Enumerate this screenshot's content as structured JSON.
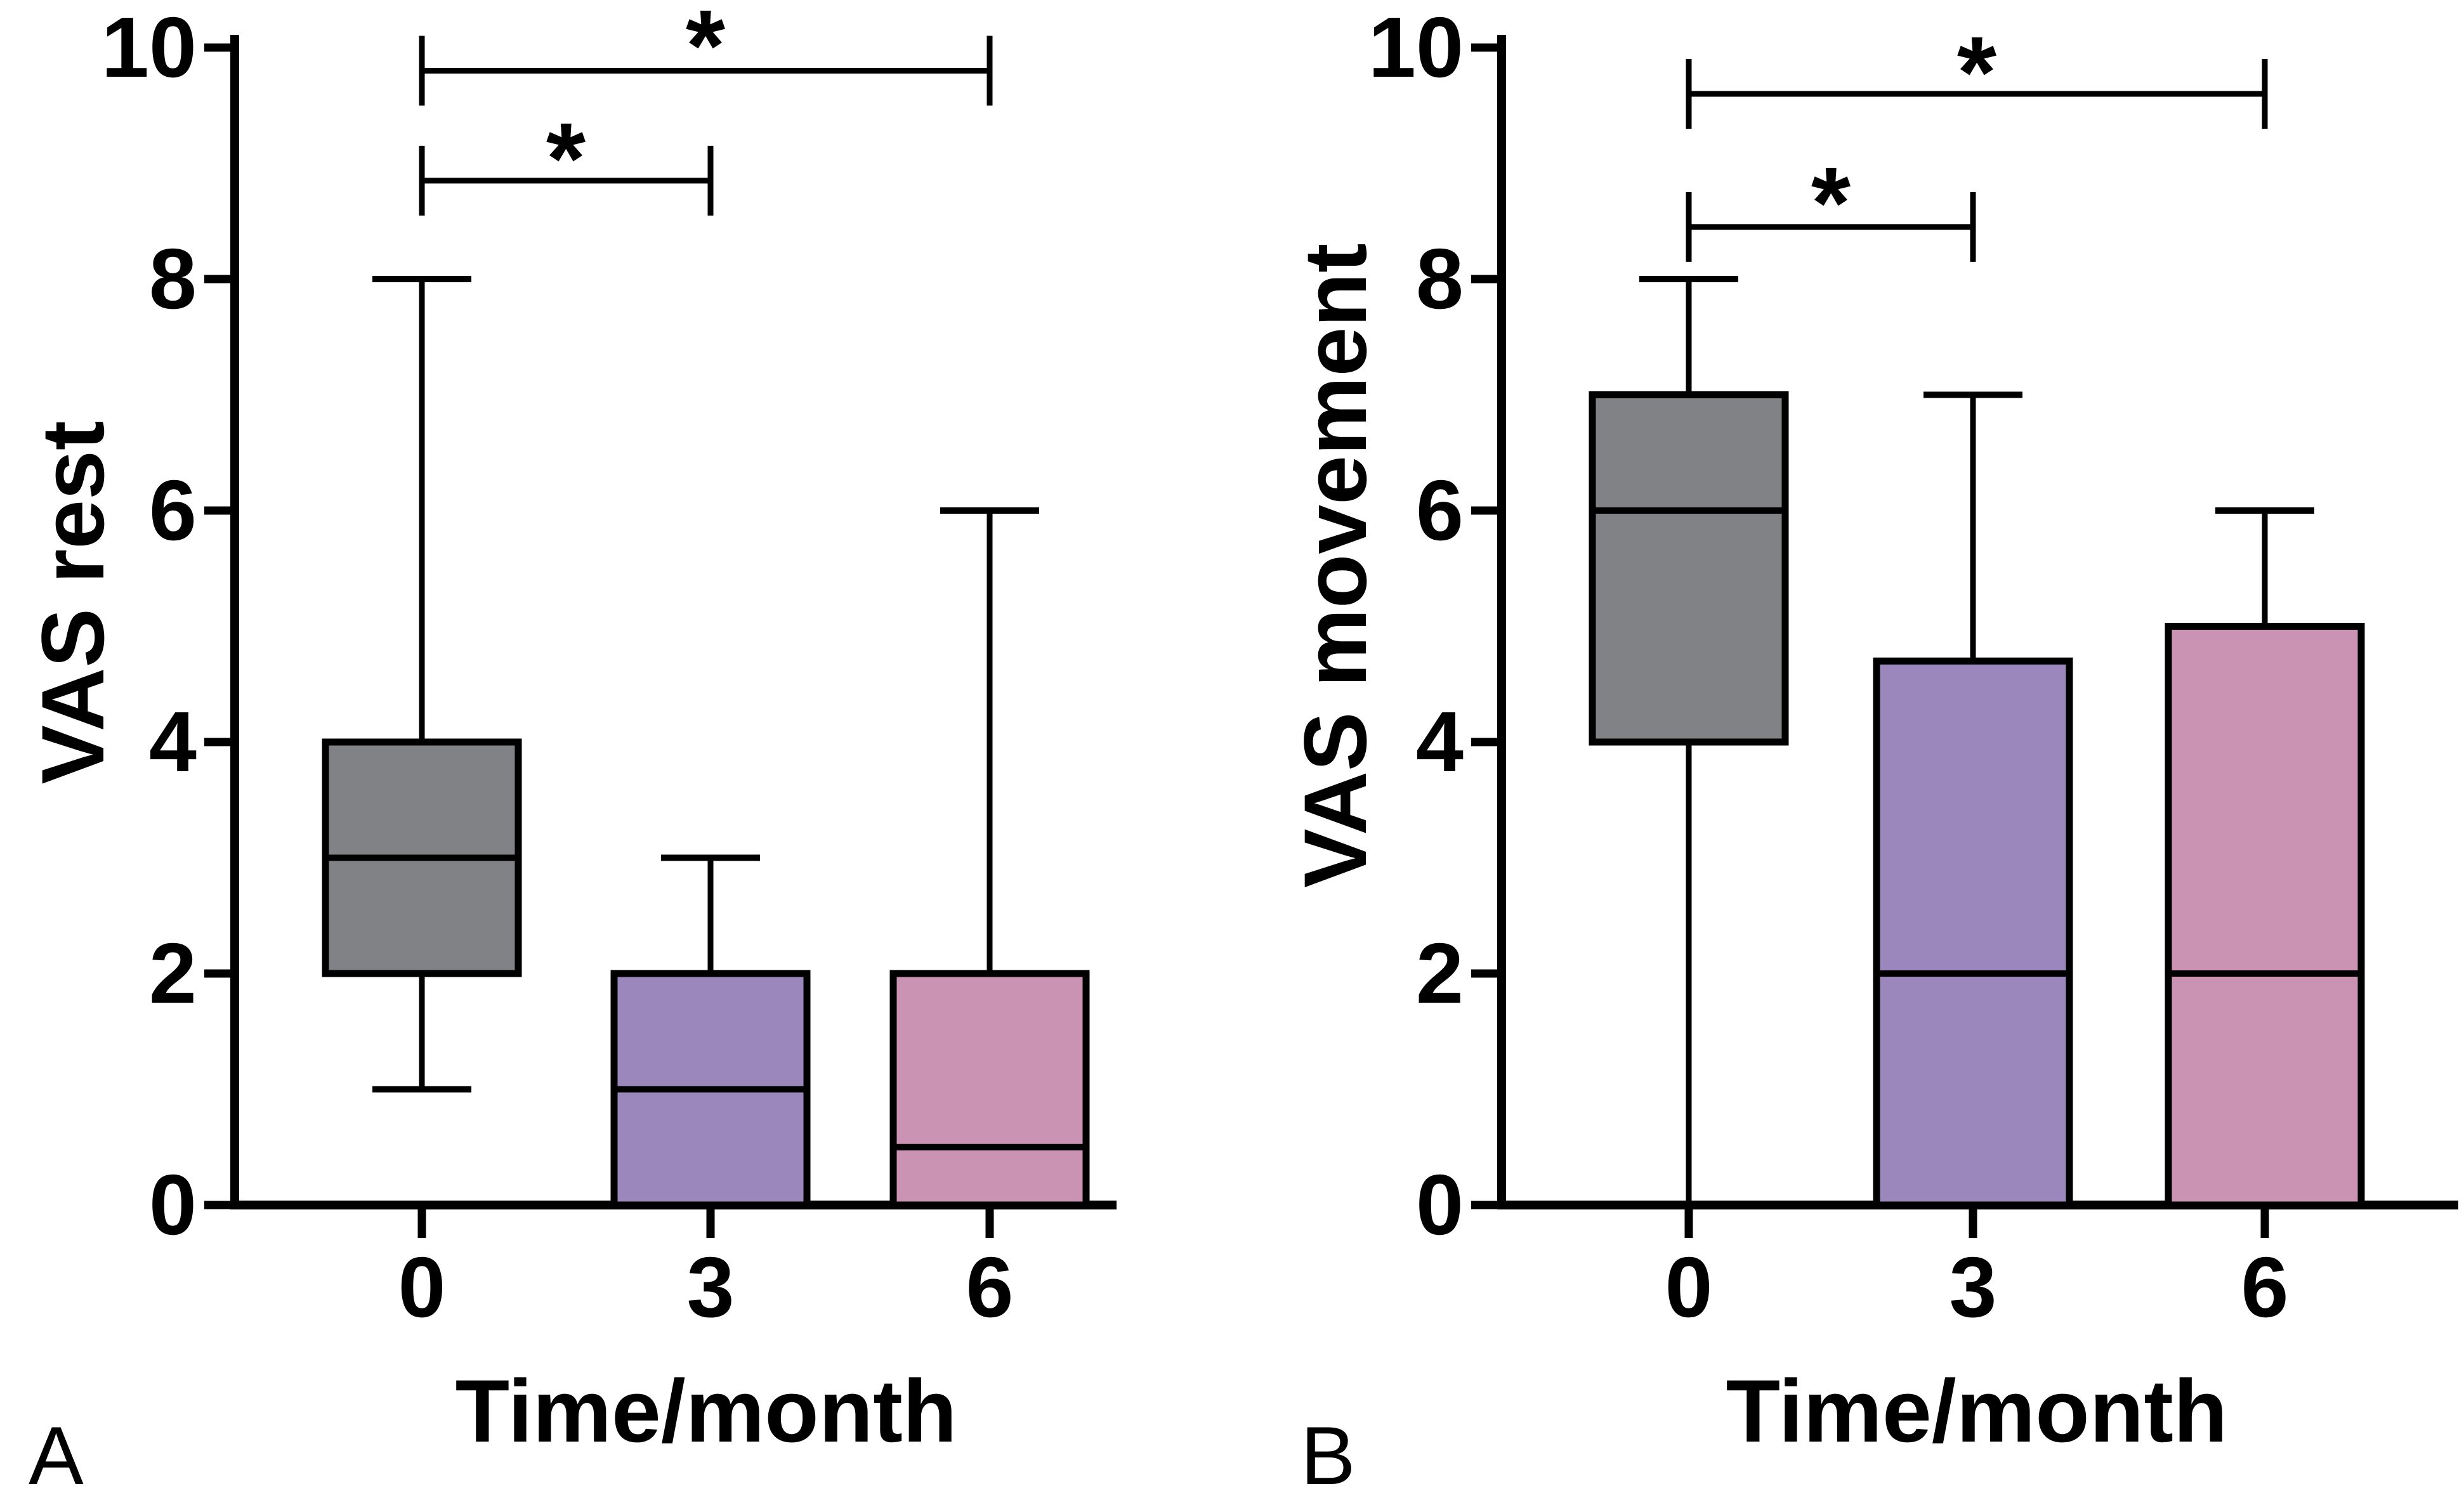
{
  "figure": {
    "background": "#FFFFFF"
  },
  "colors": {
    "gray": "#808285",
    "purple": "#9C87BC",
    "pink": "#CA92B3",
    "stroke": "#000000"
  },
  "chart_data": [
    {
      "type": "box",
      "panel_letter": "A",
      "ylabel": "VAS rest",
      "xlabel": "Time/month",
      "categories": [
        "0",
        "3",
        "6"
      ],
      "ylim": [
        0,
        10
      ],
      "yticks": [
        "0",
        "2",
        "4",
        "6",
        "8",
        "10"
      ],
      "grid": false,
      "boxes": [
        {
          "category": "0",
          "min": 1,
          "q1": 2,
          "median": 3,
          "q3": 4,
          "max": 8,
          "color": "gray"
        },
        {
          "category": "3",
          "min": 0,
          "q1": 0,
          "median": 1,
          "q3": 2,
          "max": 3,
          "color": "purple"
        },
        {
          "category": "6",
          "min": 0,
          "q1": 0,
          "median": 0.5,
          "q3": 2,
          "max": 6,
          "color": "pink"
        }
      ],
      "significance_brackets": [
        {
          "from": "0",
          "to": "6",
          "y": 9.8,
          "label": "*"
        },
        {
          "from": "0",
          "to": "3",
          "y": 8.85,
          "label": "*"
        }
      ]
    },
    {
      "type": "box",
      "panel_letter": "B",
      "ylabel": "VAS movement",
      "xlabel": "Time/month",
      "categories": [
        "0",
        "3",
        "6"
      ],
      "ylim": [
        0,
        10
      ],
      "yticks": [
        "0",
        "2",
        "4",
        "6",
        "8",
        "10"
      ],
      "grid": false,
      "boxes": [
        {
          "category": "0",
          "min": 0,
          "q1": 4,
          "median": 6,
          "q3": 7,
          "max": 8,
          "color": "gray"
        },
        {
          "category": "3",
          "min": 0,
          "q1": 0,
          "median": 2,
          "q3": 4.7,
          "max": 7,
          "color": "purple"
        },
        {
          "category": "6",
          "min": 0,
          "q1": 0,
          "median": 2,
          "q3": 5,
          "max": 6,
          "color": "pink"
        }
      ],
      "significance_brackets": [
        {
          "from": "0",
          "to": "6",
          "y": 9.6,
          "label": "*"
        },
        {
          "from": "0",
          "to": "3",
          "y": 8.45,
          "label": "*"
        }
      ]
    }
  ]
}
